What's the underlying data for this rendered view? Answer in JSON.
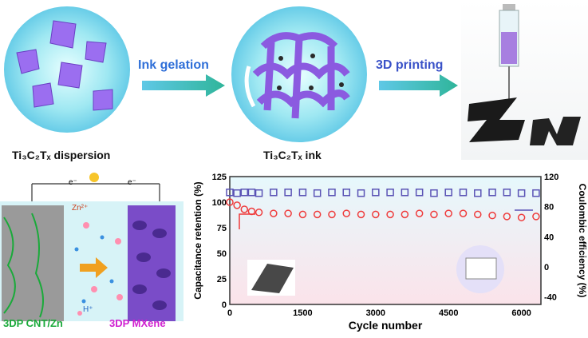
{
  "top": {
    "dispersion_label": "Ti₃C₂Tₓ dispersion",
    "ink_label": "Ti₃C₂Tₓ ink",
    "step1": "Ink gelation",
    "step2": "3D printing",
    "printed_letters": "Zn"
  },
  "device": {
    "electron_left": "e⁻",
    "electron_right": "e⁻",
    "zn_ion": "Zn²⁺",
    "h_ion": "H⁺",
    "anode_label": "3DP CNT/Zn",
    "cathode_label": "3DP MXene",
    "anode_color": "#1aaa3a",
    "cathode_color": "#d020d0"
  },
  "chart_data": {
    "type": "scatter",
    "xlabel": "Cycle number",
    "ylabel_left": "Capacitance retention (%)",
    "ylabel_right": "Coulombic efficiency (%)",
    "xticks": [
      "0",
      "1500",
      "3000",
      "4500",
      "6000"
    ],
    "yticks_left": [
      "0",
      "25",
      "50",
      "75",
      "100",
      "125"
    ],
    "yticks_right": [
      "-40",
      "0",
      "40",
      "80",
      "120"
    ],
    "xlim": [
      0,
      6400
    ],
    "ylim_left": [
      0,
      125
    ],
    "ylim_right": [
      -50,
      120
    ],
    "series": [
      {
        "axis": "right",
        "color": "#5a52b5",
        "marker": "square",
        "x": [
          0,
          150,
          300,
          450,
          600,
          900,
          1200,
          1500,
          1800,
          2100,
          2400,
          2700,
          3000,
          3300,
          3600,
          3900,
          4200,
          4500,
          4800,
          5100,
          5400,
          5700,
          6000,
          6300
        ],
        "values": [
          99,
          98,
          99,
          99,
          98,
          99,
          99,
          99,
          98,
          99,
          99,
          98,
          99,
          99,
          99,
          99,
          98,
          99,
          99,
          98,
          99,
          99,
          98,
          98
        ]
      },
      {
        "axis": "left",
        "color": "#ef3b3b",
        "marker": "circle",
        "x": [
          0,
          150,
          300,
          450,
          600,
          900,
          1200,
          1500,
          1800,
          2100,
          2400,
          2700,
          3000,
          3300,
          3600,
          3900,
          4200,
          4500,
          4800,
          5100,
          5400,
          5700,
          6000,
          6300
        ],
        "values": [
          100,
          97,
          93,
          91,
          90,
          89,
          89,
          88,
          88,
          88,
          89,
          88,
          88,
          88,
          88,
          89,
          88,
          89,
          89,
          88,
          87,
          86,
          85,
          86
        ]
      }
    ]
  }
}
